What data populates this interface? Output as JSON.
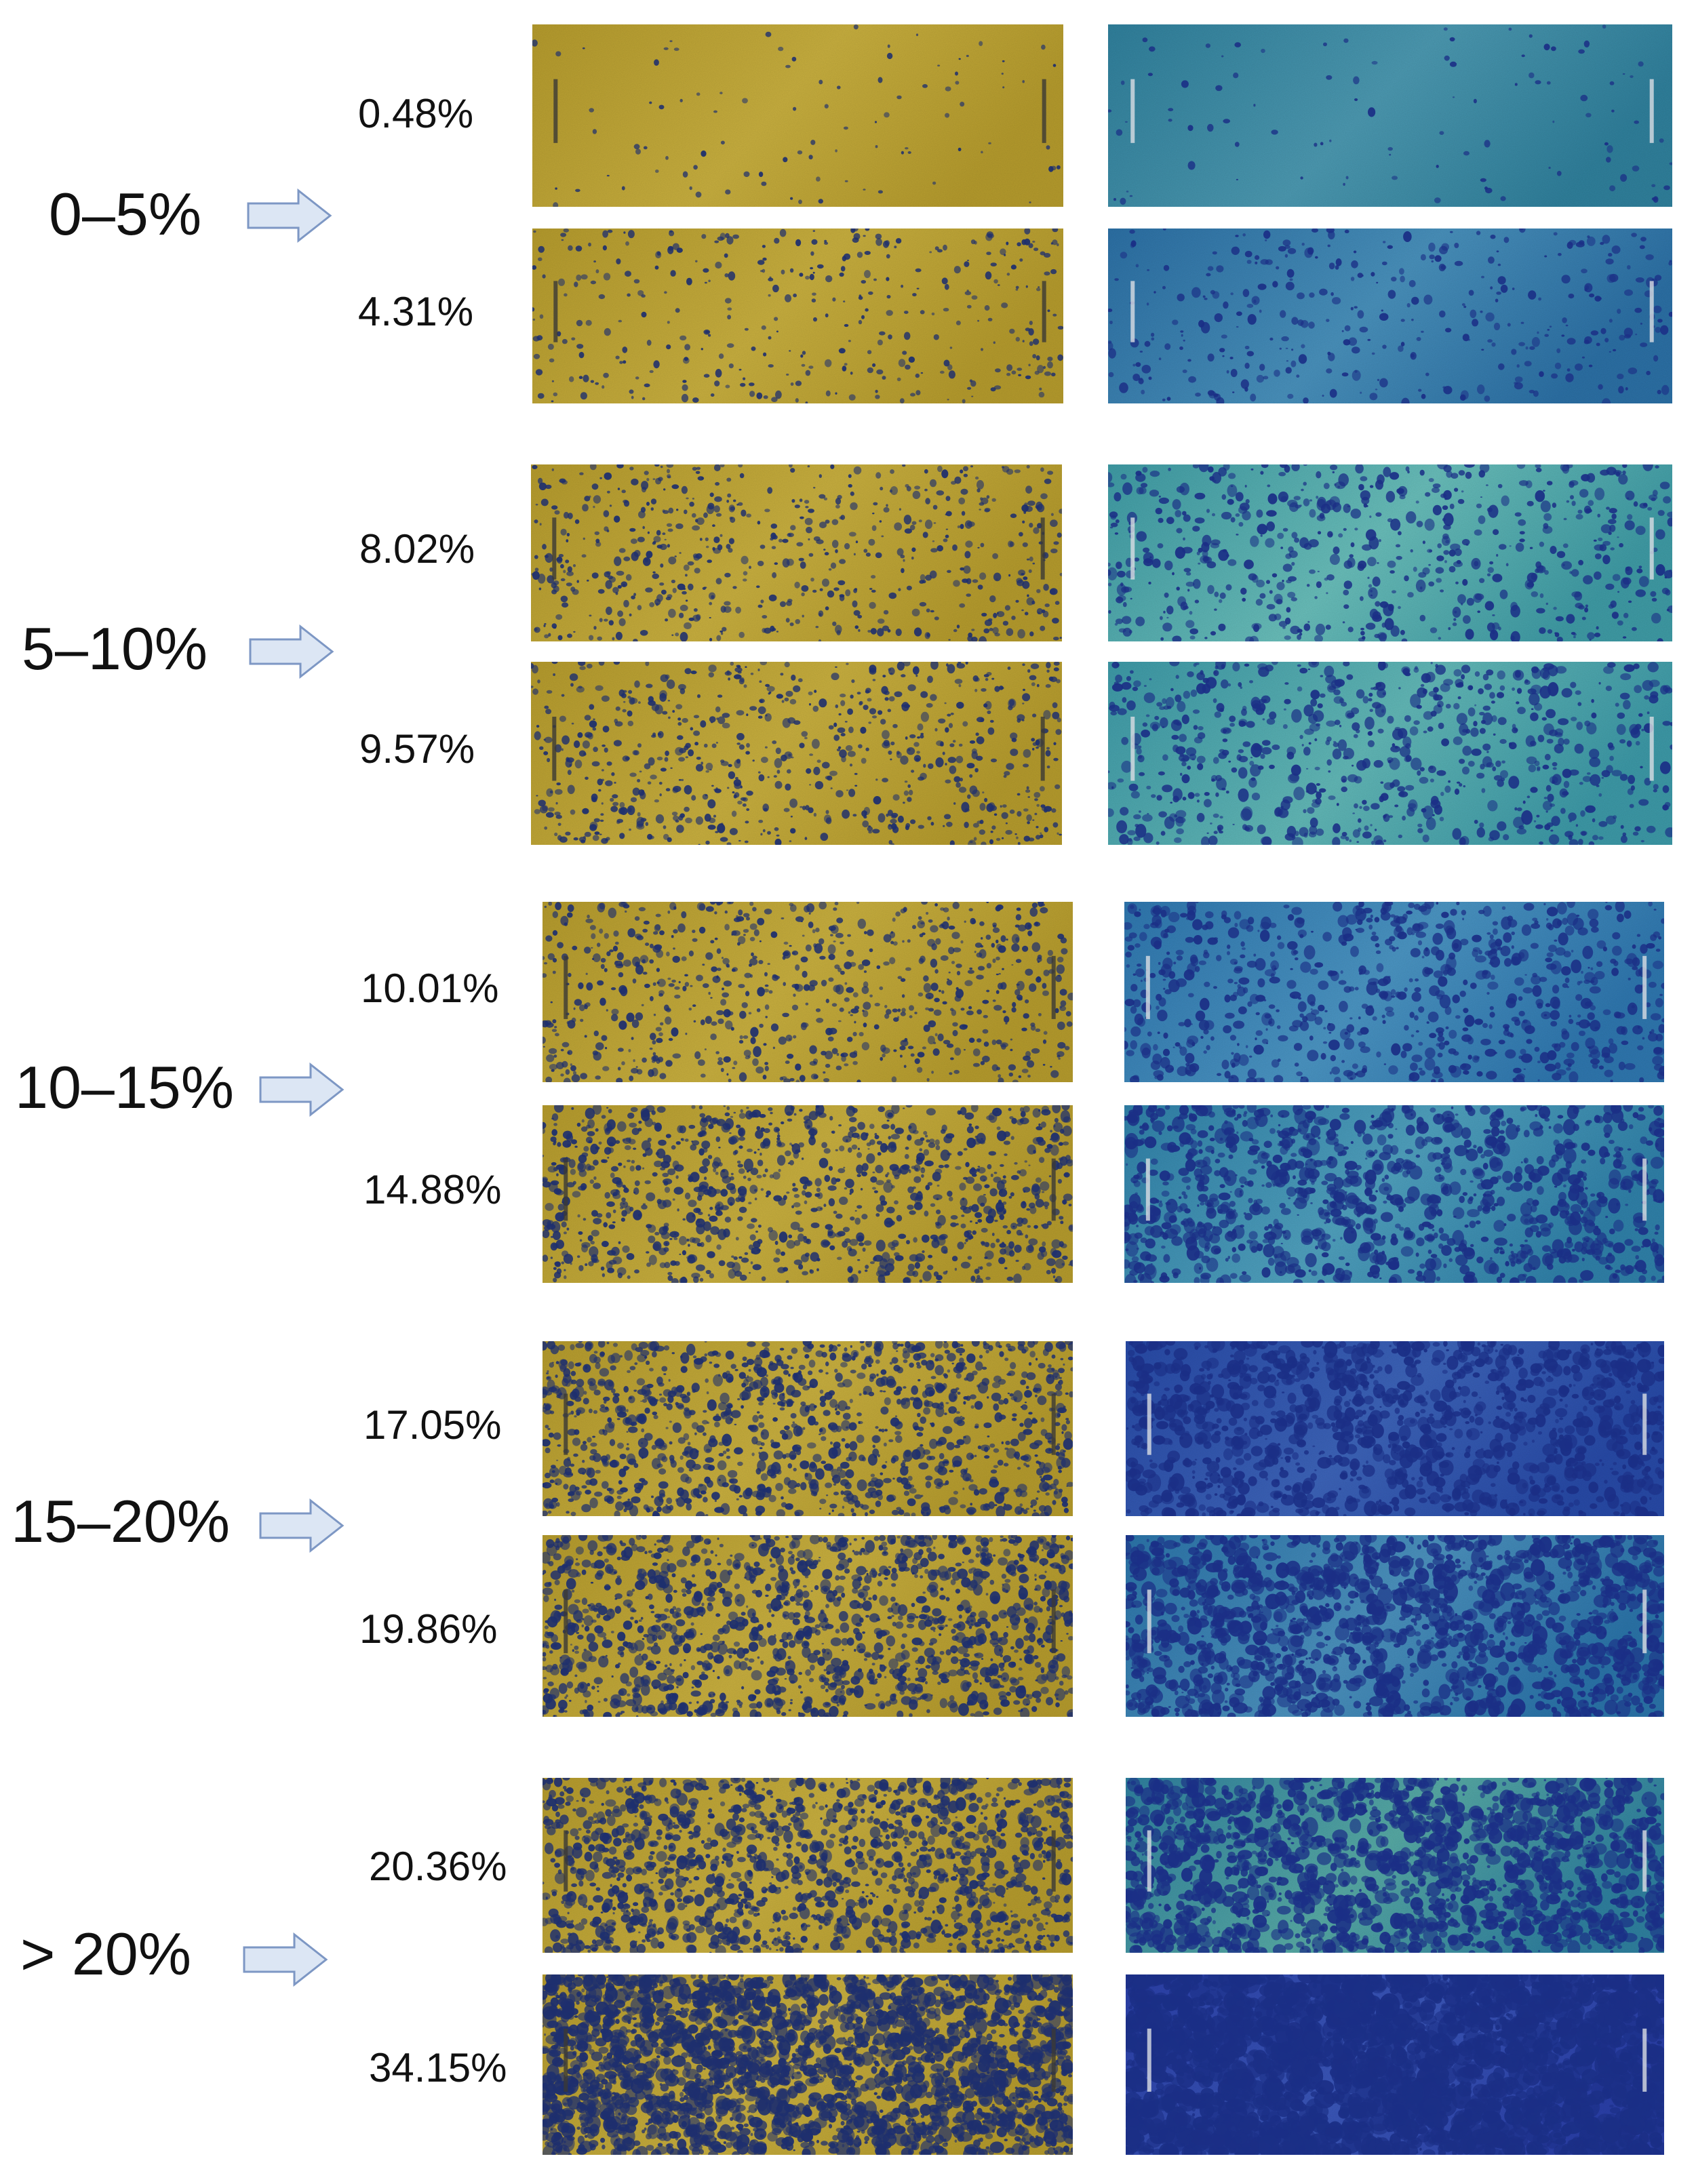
{
  "colors": {
    "yellow_base": "#b49a2c",
    "yellow_light": "#c7ae3e",
    "yellow_dot": "#1e2f6e",
    "blue_spot": "#1b2f86",
    "arrow_fill": "#dce6f4",
    "arrow_stroke": "#7d97c4"
  },
  "groups": [
    {
      "range": "0–5%",
      "samples": [
        {
          "coverage_label": "0.48%",
          "coverage_value": 0.48,
          "blue_base": "#2f7f9b",
          "blue_light": "#4b98b0"
        },
        {
          "coverage_label": "4.31%",
          "coverage_value": 4.31,
          "blue_base": "#2b6fa4",
          "blue_light": "#4890bb"
        }
      ]
    },
    {
      "range": "5–10%",
      "samples": [
        {
          "coverage_label": "8.02%",
          "coverage_value": 8.02,
          "blue_base": "#3e9aa4",
          "blue_light": "#68bdb9"
        },
        {
          "coverage_label": "9.57%",
          "coverage_value": 9.57,
          "blue_base": "#3c98a6",
          "blue_light": "#61b7b6"
        }
      ]
    },
    {
      "range": "10–15%",
      "samples": [
        {
          "coverage_label": "10.01%",
          "coverage_value": 10.01,
          "blue_base": "#2e76ae",
          "blue_light": "#4a94c2"
        },
        {
          "coverage_label": "14.88%",
          "coverage_value": 14.88,
          "blue_base": "#2f80a8",
          "blue_light": "#4fa0bd"
        }
      ]
    },
    {
      "range": "15–20%",
      "samples": [
        {
          "coverage_label": "17.05%",
          "coverage_value": 17.05,
          "blue_base": "#2749a6",
          "blue_light": "#3c63b8"
        },
        {
          "coverage_label": "19.86%",
          "coverage_value": 19.86,
          "blue_base": "#2a73a8",
          "blue_light": "#4b91bd"
        }
      ]
    },
    {
      "range": "> 20%",
      "samples": [
        {
          "coverage_label": "20.36%",
          "coverage_value": 20.36,
          "blue_base": "#2e7f9e",
          "blue_light": "#56a9a4"
        },
        {
          "coverage_label": "34.15%",
          "coverage_value": 34.15,
          "blue_base": "#2a3fa8",
          "blue_light": "#3a56b8"
        }
      ]
    }
  ]
}
